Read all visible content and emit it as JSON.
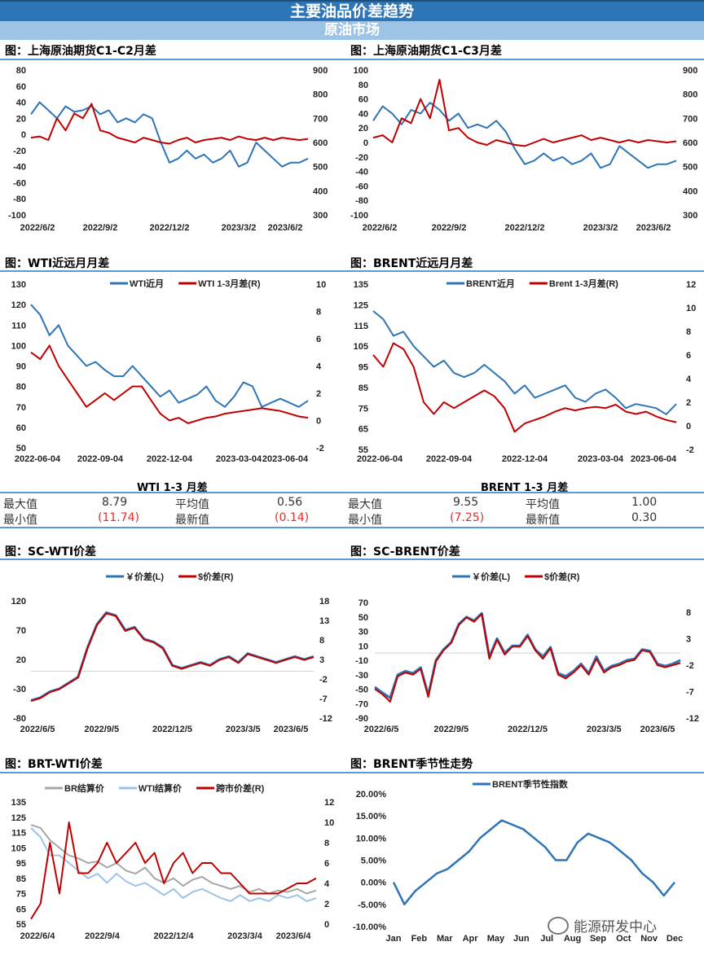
{
  "header": {
    "title": "主要油品价差趋势",
    "section": "原油市场"
  },
  "panel_titles": [
    "图：上海原油期货C1-C2月差",
    "图：上海原油期货C1-C3月差",
    "图：WTI近远月月差",
    "图：BRENT近远月月差",
    "图：SC-WTI价差",
    "图：SC-BRENT价差",
    "图：BRT-WTI价差",
    "图：BRENT季节性走势"
  ],
  "stats": [
    {
      "title": "WTI 1-3 月差",
      "max_label": "最大值",
      "max": "8.79",
      "avg_label": "平均值",
      "avg": "0.56",
      "min_label": "最小值",
      "min": "(11.74)",
      "latest_label": "最新值",
      "latest": "(0.14)"
    },
    {
      "title": "BRENT 1-3 月差",
      "max_label": "最大值",
      "max": "9.55",
      "avg_label": "平均值",
      "avg": "1.00",
      "min_label": "最小值",
      "min": "(7.25)",
      "latest_label": "最新值",
      "latest": "0.30"
    }
  ],
  "watermark": "能源研发中心",
  "chart_data": [
    {
      "type": "line",
      "title": "图：上海原油期货C1-C2月差",
      "left": {
        "min": -100,
        "max": 80,
        "ticks": [
          "80",
          "60",
          "40",
          "20",
          "0",
          "-20",
          "-40",
          "-60",
          "-80",
          "-100"
        ]
      },
      "right": {
        "min": 300,
        "max": 900,
        "ticks": [
          "900",
          "800",
          "700",
          "600",
          "500",
          "400",
          "300"
        ]
      },
      "x_ticks": [
        "2022/6/2",
        "2022/9/2",
        "2022/12/2",
        "2023/3/2",
        "2023/6/2"
      ],
      "legend": false,
      "series": [
        {
          "axis": "left",
          "color": "#2e75b6",
          "values": [
            25,
            40,
            30,
            20,
            35,
            28,
            30,
            35,
            25,
            30,
            15,
            20,
            15,
            25,
            20,
            -10,
            -35,
            -30,
            -20,
            -30,
            -25,
            -35,
            -30,
            -20,
            -40,
            -35,
            -10,
            -20,
            -30,
            -40,
            -35,
            -35,
            -30
          ]
        },
        {
          "axis": "right",
          "color": "#c00000",
          "values": [
            620,
            625,
            610,
            700,
            650,
            720,
            700,
            760,
            650,
            640,
            620,
            610,
            600,
            620,
            610,
            600,
            595,
            610,
            620,
            600,
            610,
            615,
            620,
            610,
            625,
            615,
            610,
            620,
            610,
            620,
            615,
            610,
            615
          ]
        }
      ]
    },
    {
      "type": "line",
      "title": "图：上海原油期货C1-C3月差",
      "left": {
        "min": -100,
        "max": 100,
        "ticks": [
          "100",
          "80",
          "60",
          "40",
          "20",
          "0",
          "-20",
          "-40",
          "-60",
          "-80",
          "-100"
        ]
      },
      "right": {
        "min": 300,
        "max": 900,
        "ticks": [
          "900",
          "800",
          "700",
          "600",
          "500",
          "400",
          "300"
        ]
      },
      "x_ticks": [
        "2022/6/2",
        "2022/9/2",
        "2022/12/2",
        "2023/3/2",
        "2023/6/2"
      ],
      "legend": false,
      "series": [
        {
          "axis": "left",
          "color": "#2e75b6",
          "values": [
            30,
            50,
            40,
            25,
            45,
            40,
            55,
            45,
            30,
            40,
            20,
            25,
            20,
            30,
            15,
            -10,
            -30,
            -25,
            -15,
            -25,
            -20,
            -30,
            -25,
            -15,
            -35,
            -30,
            -5,
            -15,
            -25,
            -35,
            -30,
            -30,
            -25
          ]
        },
        {
          "axis": "right",
          "color": "#c00000",
          "values": [
            620,
            630,
            600,
            700,
            680,
            780,
            700,
            860,
            650,
            660,
            620,
            600,
            590,
            610,
            600,
            590,
            585,
            600,
            615,
            600,
            610,
            620,
            630,
            610,
            620,
            610,
            600,
            610,
            600,
            610,
            605,
            600,
            605
          ]
        }
      ]
    },
    {
      "type": "line",
      "title": "图：WTI近远月月差",
      "left": {
        "min": 50,
        "max": 130,
        "ticks": [
          "130",
          "120",
          "110",
          "100",
          "90",
          "80",
          "70",
          "60",
          "50"
        ]
      },
      "right": {
        "min": -2,
        "max": 10,
        "ticks": [
          "10",
          "8",
          "6",
          "4",
          "2",
          "0",
          "-2"
        ]
      },
      "x_ticks": [
        "2022-06-04",
        "2022-09-04",
        "2022-12-04",
        "2023-03-04",
        "2023-06-04"
      ],
      "legend": true,
      "series": [
        {
          "name": "WTI近月",
          "axis": "left",
          "color": "#2e75b6",
          "values": [
            120,
            115,
            105,
            110,
            100,
            95,
            90,
            92,
            88,
            85,
            85,
            90,
            85,
            80,
            75,
            78,
            72,
            74,
            76,
            80,
            73,
            70,
            75,
            82,
            80,
            70,
            72,
            74,
            72,
            70,
            73
          ]
        },
        {
          "name": "WTI 1-3月差(R)",
          "axis": "right",
          "color": "#c00000",
          "values": [
            5,
            4.5,
            5.5,
            4,
            3,
            2,
            1,
            1.5,
            2,
            1.5,
            2,
            2.5,
            2.5,
            1.5,
            0.5,
            0,
            0.2,
            -0.2,
            0,
            0.2,
            0.3,
            0.5,
            0.6,
            0.7,
            0.8,
            0.9,
            0.8,
            0.7,
            0.5,
            0.3,
            0.2
          ]
        }
      ]
    },
    {
      "type": "line",
      "title": "图：BRENT近远月月差",
      "left": {
        "min": 55,
        "max": 135,
        "ticks": [
          "135",
          "125",
          "115",
          "105",
          "95",
          "85",
          "75",
          "65",
          "55"
        ]
      },
      "right": {
        "min": -2,
        "max": 12,
        "ticks": [
          "12",
          "10",
          "8",
          "6",
          "4",
          "2",
          "0",
          "-2"
        ]
      },
      "x_ticks": [
        "2022-06-04",
        "2022-09-04",
        "2022-12-04",
        "2023-03-04",
        "2023-06-04"
      ],
      "legend": true,
      "series": [
        {
          "name": "BRENT近月",
          "axis": "left",
          "color": "#2e75b6",
          "values": [
            122,
            118,
            110,
            112,
            105,
            100,
            95,
            98,
            92,
            90,
            92,
            96,
            92,
            88,
            82,
            86,
            80,
            82,
            84,
            86,
            80,
            78,
            82,
            84,
            80,
            75,
            77,
            76,
            75,
            72,
            77
          ]
        },
        {
          "name": "Brent 1-3月差(R)",
          "axis": "right",
          "color": "#c00000",
          "values": [
            6,
            5,
            7,
            6.5,
            5,
            2,
            1,
            2,
            1.5,
            2,
            2.5,
            3,
            2.5,
            1.5,
            -0.5,
            0.2,
            0.5,
            0.8,
            1.2,
            1.5,
            1.3,
            1.5,
            1.6,
            1.5,
            1.8,
            1.2,
            1.0,
            1.2,
            0.8,
            0.5,
            0.3
          ]
        }
      ]
    },
    {
      "type": "line",
      "title": "图：SC-WTI价差",
      "left": {
        "min": -80,
        "max": 120,
        "ticks": [
          "120",
          "70",
          "20",
          "-30",
          "-80"
        ]
      },
      "right": {
        "min": -12,
        "max": 18,
        "ticks": [
          "18",
          "13",
          "8",
          "3",
          "-2",
          "-7",
          "-12"
        ]
      },
      "x_ticks": [
        "2022/6/5",
        "2022/9/5",
        "2022/12/5",
        "2023/3/5",
        "2023/6/5"
      ],
      "legend": true,
      "zero_line": true,
      "series": [
        {
          "name": "￥价差(L)",
          "axis": "left",
          "color": "#2e75b6",
          "width": 3,
          "values": [
            -50,
            -45,
            -35,
            -30,
            -20,
            -10,
            40,
            80,
            100,
            95,
            70,
            75,
            55,
            50,
            40,
            10,
            5,
            10,
            15,
            10,
            20,
            25,
            15,
            30,
            25,
            20,
            15,
            20,
            25,
            20,
            25
          ]
        },
        {
          "name": "$价差(R)",
          "axis": "right",
          "color": "#c00000",
          "values": [
            -7.6,
            -6.9,
            -5.4,
            -4.6,
            -3.1,
            -1.6,
            5.9,
            11.8,
            14.8,
            14.1,
            10.3,
            11.1,
            8.1,
            7.4,
            5.8,
            1.4,
            0.6,
            1.4,
            2.1,
            1.4,
            2.9,
            3.6,
            2.1,
            4.4,
            3.6,
            2.9,
            2.1,
            2.9,
            3.6,
            2.9,
            3.6
          ]
        }
      ]
    },
    {
      "type": "line",
      "title": "图：SC-BRENT价差",
      "left": {
        "min": -90,
        "max": 70,
        "ticks": [
          "70",
          "50",
          "30",
          "10",
          "-10",
          "-30",
          "-50",
          "-70",
          "-90"
        ]
      },
      "right": {
        "min": -12,
        "max": 9.85,
        "ticks": [
          "8",
          "3",
          "-2",
          "-7",
          "-12"
        ]
      },
      "x_ticks": [
        "2022/6/5",
        "2022/9/5",
        "2022/12/5",
        "2023/3/5",
        "2023/6/5"
      ],
      "legend": true,
      "zero_line": true,
      "series": [
        {
          "name": "￥价差(L)",
          "axis": "left",
          "color": "#2e75b6",
          "width": 3,
          "values": [
            -47,
            -55,
            -62,
            -30,
            -25,
            -28,
            -20,
            -58,
            -10,
            5,
            15,
            40,
            50,
            45,
            55,
            -5,
            20,
            0,
            10,
            10,
            25,
            5,
            -5,
            8,
            -28,
            -32,
            -25,
            -15,
            -28,
            -5,
            -25,
            -18,
            -15,
            -10,
            -8,
            5,
            3,
            -15,
            -18,
            -15,
            -10
          ]
        },
        {
          "name": "$价差(R)",
          "axis": "right",
          "color": "#c00000",
          "values": [
            -6.5,
            -7.5,
            -8.9,
            -4.1,
            -3.4,
            -3.8,
            -2.7,
            -8.0,
            -1.3,
            0.8,
            2.2,
            5.6,
            7.0,
            6.2,
            7.7,
            -0.8,
            2.8,
            0.0,
            1.5,
            1.5,
            3.5,
            0.8,
            -0.8,
            1.2,
            -3.8,
            -4.5,
            -3.4,
            -2.0,
            -3.8,
            -0.8,
            -3.4,
            -2.4,
            -2.0,
            -1.3,
            -1.0,
            0.8,
            0.5,
            -2.0,
            -2.4,
            -2.0,
            -1.6
          ]
        }
      ]
    },
    {
      "type": "line",
      "title": "图：BRT-WTI价差",
      "left": {
        "min": 55,
        "max": 135,
        "ticks": [
          "135",
          "125",
          "115",
          "105",
          "95",
          "85",
          "75",
          "65",
          "55"
        ]
      },
      "right": {
        "min": 0,
        "max": 12,
        "ticks": [
          "12",
          "10",
          "8",
          "6",
          "4",
          "2",
          "0"
        ]
      },
      "x_ticks": [
        "2022/6/4",
        "2022/9/4",
        "2022/12/4",
        "2023/3/4",
        "2023/6/4"
      ],
      "legend": true,
      "series": [
        {
          "name": "BR结算价",
          "axis": "left",
          "color": "#a6a6a6",
          "values": [
            120,
            118,
            110,
            105,
            100,
            98,
            95,
            96,
            92,
            95,
            90,
            88,
            92,
            85,
            82,
            85,
            80,
            84,
            86,
            82,
            80,
            78,
            80,
            76,
            78,
            75,
            77,
            76,
            78,
            75,
            77
          ]
        },
        {
          "name": "WTI结算价",
          "axis": "left",
          "color": "#9dc3e6",
          "values": [
            118,
            112,
            100,
            100,
            95,
            90,
            85,
            88,
            82,
            88,
            83,
            80,
            82,
            78,
            74,
            78,
            72,
            76,
            78,
            75,
            72,
            70,
            74,
            70,
            72,
            70,
            74,
            72,
            74,
            70,
            72
          ]
        },
        {
          "name": "跨市价差(R)",
          "axis": "right",
          "color": "#c00000",
          "values": [
            0.5,
            2,
            8,
            3,
            10,
            5,
            5,
            6,
            8,
            6,
            7,
            8,
            6,
            7,
            4,
            6,
            7,
            5,
            6,
            6,
            5,
            5,
            4,
            3,
            3,
            3,
            3,
            3.5,
            4,
            4,
            4.5
          ]
        }
      ]
    },
    {
      "type": "line",
      "title": "图：BRENT季节性走势",
      "left": {
        "min": -10,
        "max": 20,
        "ticks": [
          "20.00%",
          "15.00%",
          "10.00%",
          "5.00%",
          "0.00%",
          "-5.00%",
          "-10.00%"
        ]
      },
      "right": null,
      "x_ticks": [
        "Jan",
        "Feb",
        "Mar",
        "Apr",
        "May",
        "Jun",
        "Jul",
        "Aug",
        "Sep",
        "Oct",
        "Nov",
        "Dec"
      ],
      "legend": true,
      "x_mode": "months",
      "series": [
        {
          "name": "BRENT季节性指数",
          "axis": "left",
          "color": "#2e75b6",
          "width": 2.5,
          "values": [
            0,
            -5,
            -2,
            0,
            2,
            3,
            5,
            7,
            10,
            12,
            14,
            13,
            12,
            10,
            8,
            5,
            5,
            9,
            11,
            10,
            9,
            7,
            5,
            2,
            0,
            -3,
            0
          ]
        }
      ]
    }
  ]
}
